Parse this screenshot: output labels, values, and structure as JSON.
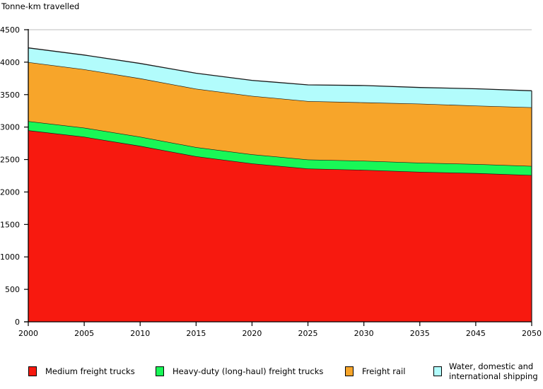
{
  "chart_data": {
    "type": "area",
    "stacked": true,
    "title": "",
    "ylabel": "Tonne-km travelled",
    "xlabel": "",
    "categories": [
      "2000",
      "2005",
      "2010",
      "2015",
      "2020",
      "2025",
      "2030",
      "2035",
      "2045",
      "2050"
    ],
    "ylim": [
      0,
      4500
    ],
    "yticks": [
      0,
      500,
      1000,
      1500,
      2000,
      2500,
      3000,
      3500,
      4000,
      4500
    ],
    "grid": "top gridline at 4500 only",
    "legend_position": "bottom",
    "series": [
      {
        "name": "Medium freight trucks",
        "color": "#f7190f",
        "values": [
          2950,
          2850,
          2710,
          2550,
          2440,
          2360,
          2340,
          2310,
          2290,
          2260
        ]
      },
      {
        "name": "Heavy-duty (long-haul) freight trucks",
        "color": "#19f757",
        "values": [
          140,
          140,
          140,
          140,
          140,
          140,
          140,
          140,
          140,
          140
        ]
      },
      {
        "name": "Freight rail",
        "color": "#f7a52a",
        "values": [
          910,
          900,
          900,
          900,
          900,
          900,
          900,
          910,
          900,
          905
        ]
      },
      {
        "name": "Water, domestic and international shipping",
        "color": "#b2fcfc",
        "values": [
          220,
          220,
          230,
          240,
          240,
          250,
          260,
          250,
          260,
          255
        ]
      }
    ]
  },
  "legend": {
    "items": [
      {
        "label": "Medium freight trucks",
        "color": "#f7190f"
      },
      {
        "label": "Heavy-duty (long-haul) freight trucks",
        "color": "#19f757"
      },
      {
        "label": "Freight rail",
        "color": "#f7a52a"
      },
      {
        "label_line1": "Water, domestic and",
        "label_line2": "international shipping",
        "color": "#b2fcfc"
      }
    ]
  }
}
